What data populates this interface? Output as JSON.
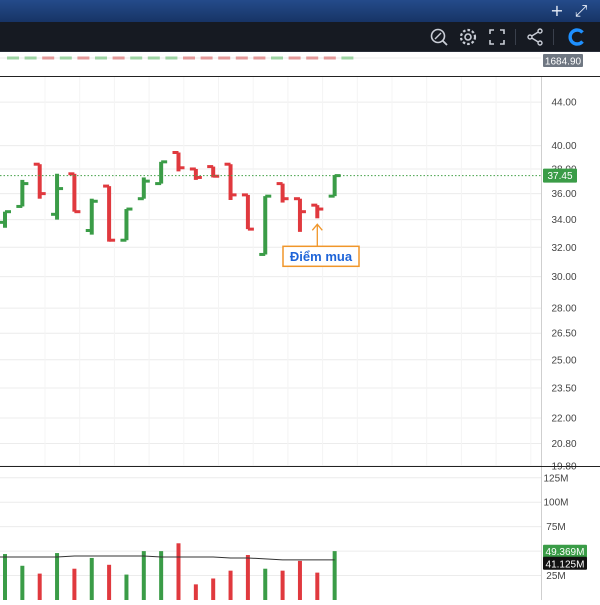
{
  "window": {
    "add_label": "+",
    "expand_label": "⤢"
  },
  "toolbar": {
    "icons": [
      "zoom-reset-icon",
      "settings-gear-icon",
      "fullscreen-icon",
      "share-icon",
      "app-logo-icon"
    ],
    "accent": "#1e90ff"
  },
  "colors": {
    "up": "#3a9c47",
    "down": "#e0393e",
    "grid": "#ececec",
    "axis_text": "#444444",
    "last_price_bg": "#3a9c47",
    "last_price_line": "#43a047",
    "annotation": "#f0962a",
    "annotation_text": "#1e64d8",
    "volume_ma": "#333333"
  },
  "top_axis_badge": "1684.90",
  "annotation": {
    "label": "Điểm mua"
  },
  "chart_data": [
    {
      "type": "ohlc",
      "title": "",
      "y_scale": "log",
      "ylim": [
        19.8,
        46.5
      ],
      "tick_labels": [
        "44.00",
        "40.00",
        "38.00",
        "36.00",
        "34.00",
        "32.00",
        "30.00",
        "28.00",
        "26.50",
        "25.00",
        "23.50",
        "22.00",
        "20.80",
        "19.80"
      ],
      "grid": true,
      "last_price": "37.45",
      "bars": [
        {
          "o": 33.8,
          "h": 34.6,
          "l": 33.4,
          "c": 34.6
        },
        {
          "o": 35.0,
          "h": 37.1,
          "l": 35.0,
          "c": 36.8
        },
        {
          "o": 38.4,
          "h": 38.4,
          "l": 35.6,
          "c": 36.0
        },
        {
          "o": 34.4,
          "h": 37.6,
          "l": 34.0,
          "c": 36.4
        },
        {
          "o": 37.6,
          "h": 37.6,
          "l": 34.6,
          "c": 34.6
        },
        {
          "o": 33.2,
          "h": 35.6,
          "l": 32.9,
          "c": 35.4
        },
        {
          "o": 36.6,
          "h": 36.6,
          "l": 32.4,
          "c": 32.5
        },
        {
          "o": 32.5,
          "h": 34.8,
          "l": 32.5,
          "c": 34.8
        },
        {
          "o": 35.6,
          "h": 37.3,
          "l": 35.6,
          "c": 37.0
        },
        {
          "o": 36.8,
          "h": 38.6,
          "l": 36.8,
          "c": 38.6
        },
        {
          "o": 39.4,
          "h": 39.4,
          "l": 37.8,
          "c": 38.1
        },
        {
          "o": 38.0,
          "h": 38.0,
          "l": 37.1,
          "c": 37.3
        },
        {
          "o": 38.2,
          "h": 38.2,
          "l": 37.3,
          "c": 37.4
        },
        {
          "o": 38.4,
          "h": 38.4,
          "l": 35.5,
          "c": 35.9
        },
        {
          "o": 35.9,
          "h": 35.9,
          "l": 33.3,
          "c": 33.3
        },
        {
          "o": 31.5,
          "h": 35.8,
          "l": 31.5,
          "c": 35.8
        },
        {
          "o": 36.8,
          "h": 36.8,
          "l": 35.3,
          "c": 35.6
        },
        {
          "o": 35.6,
          "h": 35.6,
          "l": 33.1,
          "c": 34.6
        },
        {
          "o": 35.1,
          "h": 35.1,
          "l": 34.1,
          "c": 34.8
        },
        {
          "o": 35.8,
          "h": 37.5,
          "l": 35.8,
          "c": 37.45
        }
      ]
    },
    {
      "type": "bar",
      "title": "",
      "ylim": [
        0,
        135
      ],
      "unit": "M",
      "tick_labels": [
        "125M",
        "100M",
        "75M",
        "50M",
        "25M"
      ],
      "grid": true,
      "badges": [
        "49.369M",
        "41.125M"
      ],
      "values": [
        47,
        35,
        27,
        48,
        32,
        43,
        36,
        26,
        50,
        50,
        58,
        16,
        22,
        30,
        46,
        32,
        30,
        40,
        28,
        50
      ],
      "ma": [
        44,
        44,
        44,
        44,
        45,
        45,
        45,
        45,
        45,
        44,
        44,
        44,
        44,
        43,
        43,
        42,
        41,
        41,
        41,
        41
      ]
    }
  ]
}
